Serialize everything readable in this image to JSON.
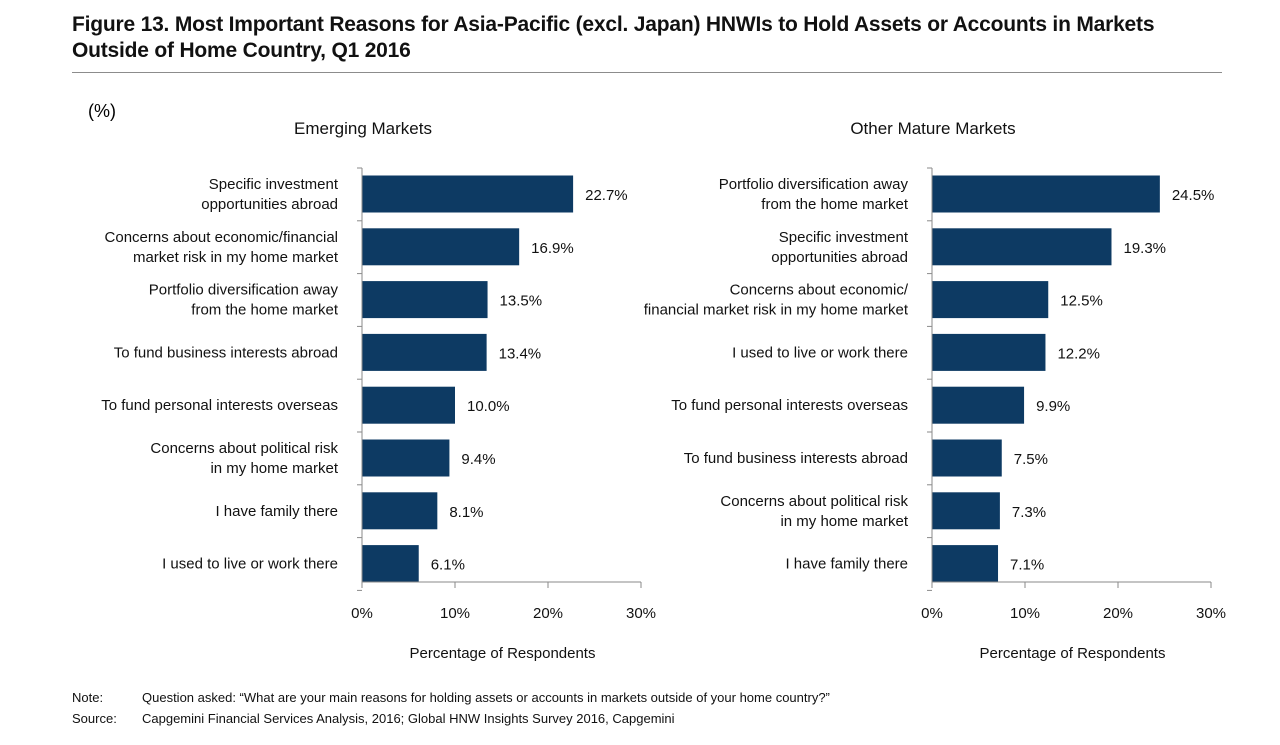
{
  "title": "Figure 13. Most Important Reasons for Asia-Pacific (excl. Japan) HNWIs to Hold Assets or Accounts in Markets Outside of Home Country, Q1 2016",
  "unit_label": "(%)",
  "colors": {
    "bar": "#0d3a63",
    "axis": "#8a8a8a",
    "text": "#111111"
  },
  "chart_data": [
    {
      "type": "bar",
      "orientation": "horizontal",
      "title": "Emerging Markets",
      "xlabel": "Percentage of Respondents",
      "xlim": [
        0,
        30
      ],
      "xticks": [
        "0%",
        "10%",
        "20%",
        "30%"
      ],
      "categories": [
        [
          "Specific investment",
          "opportunities abroad"
        ],
        [
          "Concerns about economic/financial",
          "market risk in my home market"
        ],
        [
          "Portfolio diversification away",
          "from the home market"
        ],
        [
          "To  fund business interests abroad"
        ],
        [
          "To fund personal interests overseas"
        ],
        [
          "Concerns about political risk",
          "in my home market"
        ],
        [
          "I have family there"
        ],
        [
          "I used to live or work there"
        ]
      ],
      "values": [
        22.7,
        16.9,
        13.5,
        13.4,
        10.0,
        9.4,
        8.1,
        6.1
      ],
      "value_labels": [
        "22.7%",
        "16.9%",
        "13.5%",
        "13.4%",
        "10.0%",
        "9.4%",
        "8.1%",
        "6.1%"
      ]
    },
    {
      "type": "bar",
      "orientation": "horizontal",
      "title": "Other Mature Markets",
      "xlabel": "Percentage of Respondents",
      "xlim": [
        0,
        30
      ],
      "xticks": [
        "0%",
        "10%",
        "20%",
        "30%"
      ],
      "categories": [
        [
          "Portfolio diversification away",
          "from the home market"
        ],
        [
          "Specific investment",
          "opportunities abroad"
        ],
        [
          "Concerns about economic/",
          "financial market risk in my home market"
        ],
        [
          "I used to live or work there"
        ],
        [
          "To fund personal interests overseas"
        ],
        [
          "To  fund business interests abroad"
        ],
        [
          "Concerns about political risk",
          "in my home market"
        ],
        [
          "I have family there"
        ]
      ],
      "values": [
        24.5,
        19.3,
        12.5,
        12.2,
        9.9,
        7.5,
        7.3,
        7.1
      ],
      "value_labels": [
        "24.5%",
        "19.3%",
        "12.5%",
        "12.2%",
        "9.9%",
        "7.5%",
        "7.3%",
        "7.1%"
      ]
    }
  ],
  "notes": {
    "note_label": "Note:",
    "note_text": "Question asked: “What are your main reasons for holding assets or accounts in markets outside of your home country?”",
    "source_label": "Source:",
    "source_text": "Capgemini Financial Services Analysis, 2016; Global HNW Insights Survey 2016, Capgemini"
  }
}
